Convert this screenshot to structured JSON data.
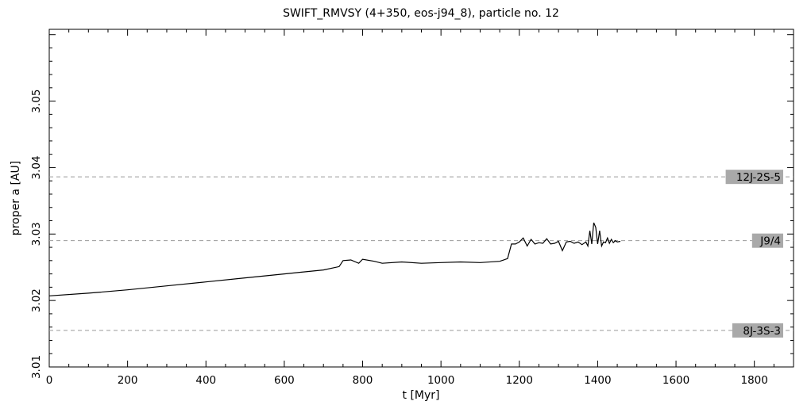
{
  "chart_data": {
    "type": "line",
    "title": "SWIFT_RMVSY (4+350, eos-j94_8), particle no. 12",
    "xlabel": "t [Myr]",
    "ylabel": "proper a [AU]",
    "xlim": [
      0,
      1900
    ],
    "ylim": [
      3.01,
      3.0608
    ],
    "x_ticks": [
      "0",
      "200",
      "400",
      "600",
      "800",
      "1000",
      "1200",
      "1400",
      "1600",
      "1800"
    ],
    "y_ticks": [
      "3.01",
      "3.02",
      "3.03",
      "3.04",
      "3.05"
    ],
    "grid": false,
    "series": [
      {
        "x": [
          0,
          100,
          200,
          300,
          400,
          500,
          600,
          700,
          740,
          750,
          770,
          790,
          800,
          830,
          850,
          900,
          950,
          1000,
          1050,
          1100,
          1150,
          1170,
          1180,
          1190,
          1200,
          1210,
          1220,
          1230,
          1240,
          1250,
          1260,
          1270,
          1280,
          1290,
          1300,
          1310,
          1320,
          1330,
          1340,
          1350,
          1360,
          1370,
          1375,
          1380,
          1385,
          1390,
          1395,
          1400,
          1405,
          1410,
          1415,
          1420,
          1425,
          1430,
          1435,
          1440,
          1445,
          1450,
          1458
        ],
        "y": [
          3.0207,
          3.0211,
          3.0216,
          3.0222,
          3.0228,
          3.0234,
          3.024,
          3.0246,
          3.0251,
          3.026,
          3.0261,
          3.0256,
          3.0262,
          3.0259,
          3.0256,
          3.0258,
          3.0256,
          3.0257,
          3.0258,
          3.0257,
          3.0259,
          3.0263,
          3.0285,
          3.0285,
          3.0288,
          3.0294,
          3.0282,
          3.0292,
          3.0285,
          3.0287,
          3.0286,
          3.0293,
          3.0285,
          3.0286,
          3.0289,
          3.0275,
          3.0288,
          3.0289,
          3.0286,
          3.0288,
          3.0284,
          3.0288,
          3.0282,
          3.0305,
          3.0285,
          3.0317,
          3.031,
          3.0285,
          3.0305,
          3.0282,
          3.0288,
          3.0287,
          3.0294,
          3.0286,
          3.0292,
          3.0287,
          3.029,
          3.0288,
          3.0289
        ]
      }
    ],
    "resonances": [
      {
        "label": "12J-2S-5",
        "a": 3.0386
      },
      {
        "label": "J9/4",
        "a": 3.029
      },
      {
        "label": "8J-3S-3",
        "a": 3.0155
      }
    ]
  }
}
